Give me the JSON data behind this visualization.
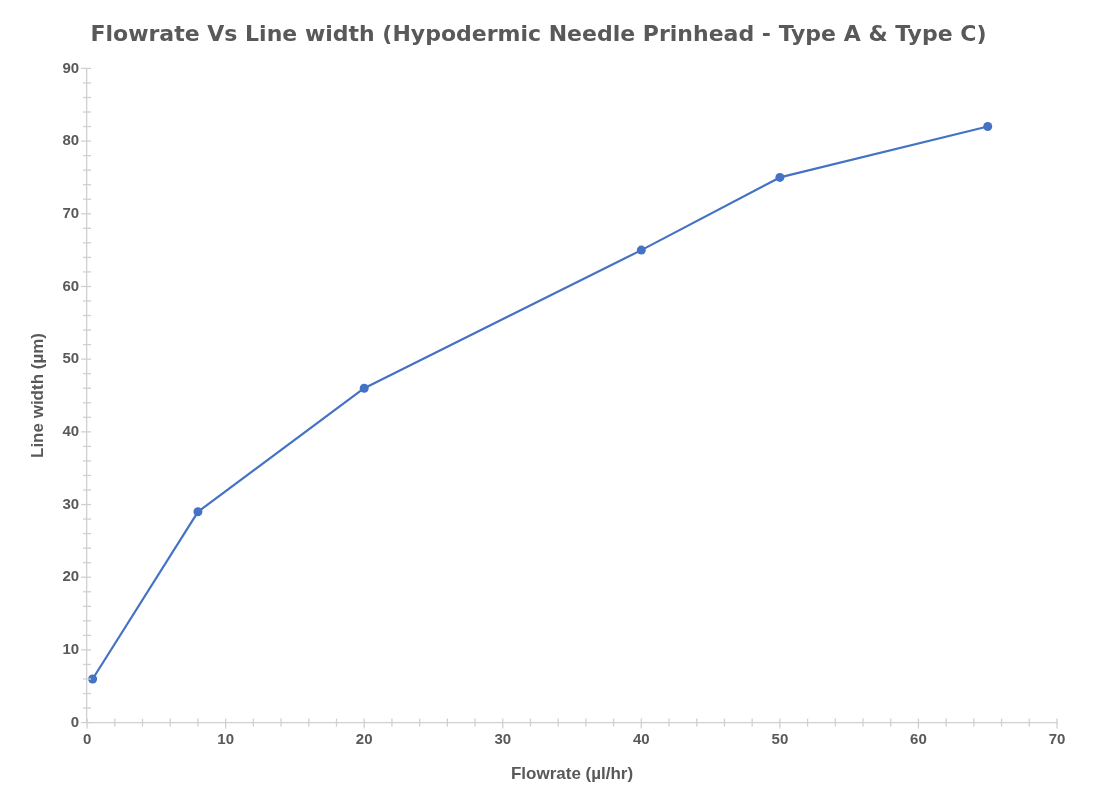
{
  "chart_data": {
    "type": "line",
    "title": "Flowrate Vs Line width (Hypodermic Needle Prinhead - Type A & Type C)",
    "xlabel": "Flowrate (µl/hr)",
    "ylabel": "Line width (µm)",
    "x": [
      0.4,
      8,
      20,
      40,
      50,
      65
    ],
    "series": [
      {
        "color": "#4472c4",
        "values": [
          6,
          29,
          46,
          65,
          75,
          82
        ]
      }
    ],
    "xlim": [
      0,
      70
    ],
    "xticks": [
      0,
      {
        "value": 2,
        "label": null
      },
      {
        "value": 4,
        "label": null
      },
      {
        "value": 6,
        "label": null
      },
      {
        "value": 8,
        "label": null
      },
      10,
      {
        "value": 12,
        "label": null
      },
      {
        "value": 14,
        "label": null
      },
      {
        "value": 16,
        "label": null
      },
      {
        "value": 18,
        "label": null
      },
      20,
      {
        "value": 22,
        "label": null
      },
      {
        "value": 24,
        "label": null
      },
      {
        "value": 26,
        "label": null
      },
      {
        "value": 28,
        "label": null
      },
      30,
      {
        "value": 32,
        "label": null
      },
      {
        "value": 34,
        "label": null
      },
      {
        "value": 36,
        "label": null
      },
      {
        "value": 38,
        "label": null
      },
      40,
      {
        "value": 42,
        "label": null
      },
      {
        "value": 44,
        "label": null
      },
      {
        "value": 46,
        "label": null
      },
      {
        "value": 48,
        "label": null
      },
      50,
      {
        "value": 52,
        "label": null
      },
      {
        "value": 54,
        "label": null
      },
      {
        "value": 56,
        "label": null
      },
      {
        "value": 58,
        "label": null
      },
      60,
      {
        "value": 62,
        "label": null
      },
      {
        "value": 64,
        "label": null
      },
      {
        "value": 66,
        "label": null
      },
      {
        "value": 68,
        "label": null
      },
      70
    ],
    "ylim": [
      0,
      90
    ],
    "yticks": [
      0,
      {
        "value": 2,
        "label": null
      },
      {
        "value": 4,
        "label": null
      },
      {
        "value": 6,
        "label": null
      },
      {
        "value": 8,
        "label": null
      },
      10,
      {
        "value": 12,
        "label": null
      },
      {
        "value": 14,
        "label": null
      },
      {
        "value": 16,
        "label": null
      },
      {
        "value": 18,
        "label": null
      },
      20,
      {
        "value": 22,
        "label": null
      },
      {
        "value": 24,
        "label": null
      },
      {
        "value": 26,
        "label": null
      },
      {
        "value": 28,
        "label": null
      },
      30,
      {
        "value": 32,
        "label": null
      },
      {
        "value": 34,
        "label": null
      },
      {
        "value": 36,
        "label": null
      },
      {
        "value": 38,
        "label": null
      },
      40,
      {
        "value": 42,
        "label": null
      },
      {
        "value": 44,
        "label": null
      },
      {
        "value": 46,
        "label": null
      },
      {
        "value": 48,
        "label": null
      },
      50,
      {
        "value": 52,
        "label": null
      },
      {
        "value": 54,
        "label": null
      },
      {
        "value": 56,
        "label": null
      },
      {
        "value": 58,
        "label": null
      },
      60,
      {
        "value": 62,
        "label": null
      },
      {
        "value": 64,
        "label": null
      },
      {
        "value": 66,
        "label": null
      },
      {
        "value": 68,
        "label": null
      },
      70,
      {
        "value": 72,
        "label": null
      },
      {
        "value": 74,
        "label": null
      },
      {
        "value": 76,
        "label": null
      },
      {
        "value": 78,
        "label": null
      },
      80,
      {
        "value": 82,
        "label": null
      },
      {
        "value": 84,
        "label": null
      },
      {
        "value": 86,
        "label": null
      },
      {
        "value": 88,
        "label": null
      },
      90
    ],
    "grid": false,
    "legend": false,
    "marker": "circle",
    "line_style": "solid"
  }
}
